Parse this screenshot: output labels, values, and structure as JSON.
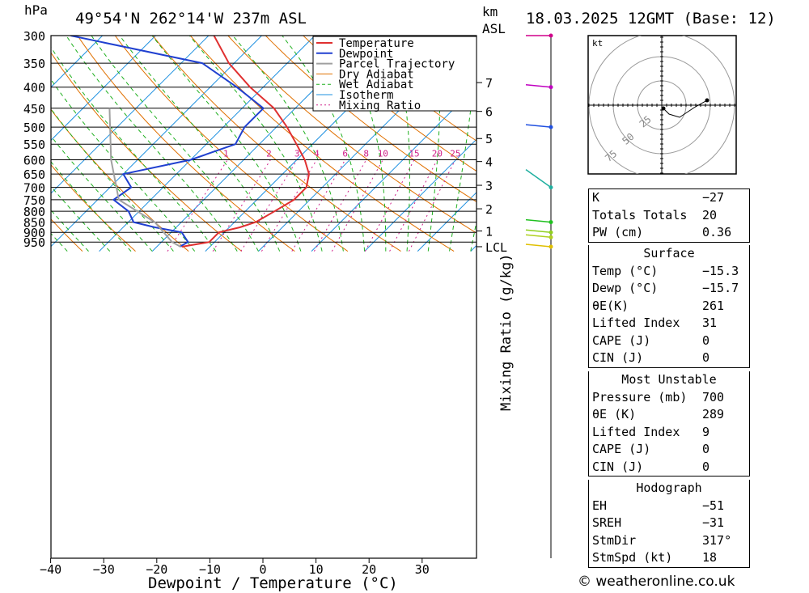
{
  "header": {
    "pressure_unit": "hPa",
    "location": "49°54'N  262°14'W  237m  ASL",
    "height_unit_1": "km",
    "height_unit_2": "ASL",
    "datetime": "18.03.2025  12GMT  (Base: 12)"
  },
  "chart_data": {
    "type": "line",
    "xlabel": "Dewpoint / Temperature (°C)",
    "x_ticks": [
      "−40",
      "−30",
      "−20",
      "−10",
      "0",
      "10",
      "20",
      "30"
    ],
    "x_tick_values": [
      -40,
      -30,
      -20,
      -10,
      0,
      10,
      20,
      30
    ],
    "ylabel_left": "hPa",
    "pressure_levels": [
      300,
      350,
      400,
      450,
      500,
      550,
      600,
      650,
      700,
      750,
      800,
      850,
      900,
      950
    ],
    "height_ticks": [
      {
        "label": "7",
        "p": 390
      },
      {
        "label": "6",
        "p": 458
      },
      {
        "label": "5",
        "p": 533
      },
      {
        "label": "4",
        "p": 606
      },
      {
        "label": "3",
        "p": 692
      },
      {
        "label": "2",
        "p": 789
      },
      {
        "label": "1",
        "p": 893
      },
      {
        "label": "LCL",
        "p": 975
      }
    ],
    "mixing_ratio_label": "Mixing Ratio (g/kg)",
    "mixing_ratio_values": [
      "1",
      "2",
      "3",
      "4",
      "6",
      "8",
      "10",
      "15",
      "20",
      "25"
    ],
    "legend": [
      "Temperature",
      "Dewpoint",
      "Parcel Trajectory",
      "Dry Adiabat",
      "Wet Adiabat",
      "Isotherm",
      "Mixing Ratio"
    ],
    "colors": {
      "temperature": "#e03030",
      "dewpoint": "#2040d0",
      "parcel": "#a0a0a0",
      "dry_adiabat": "#e07000",
      "wet_adiabat": "#20b020",
      "isotherm": "#1e90e0",
      "mixing_ratio": "#d0208a"
    },
    "series": [
      {
        "name": "Temperature",
        "points": [
          [
            300,
            -49
          ],
          [
            350,
            -41
          ],
          [
            400,
            -32.5
          ],
          [
            450,
            -24
          ],
          [
            500,
            -18
          ],
          [
            550,
            -13
          ],
          [
            600,
            -8.5
          ],
          [
            650,
            -5
          ],
          [
            700,
            -3
          ],
          [
            750,
            -3
          ],
          [
            800,
            -4.5
          ],
          [
            850,
            -6
          ],
          [
            875,
            -8
          ],
          [
            900,
            -11
          ],
          [
            950,
            -11
          ],
          [
            975,
            -15.3
          ]
        ]
      },
      {
        "name": "Dewpoint",
        "points": [
          [
            300,
            -76
          ],
          [
            350,
            -46
          ],
          [
            400,
            -35
          ],
          [
            450,
            -26
          ],
          [
            500,
            -26
          ],
          [
            550,
            -24.5
          ],
          [
            600,
            -30
          ],
          [
            650,
            -40
          ],
          [
            700,
            -36
          ],
          [
            750,
            -37
          ],
          [
            800,
            -32
          ],
          [
            850,
            -29
          ],
          [
            875,
            -24
          ],
          [
            900,
            -18
          ],
          [
            950,
            -15
          ],
          [
            975,
            -15.7
          ]
        ]
      },
      {
        "name": "Parcel Trajectory",
        "points": [
          [
            450,
            -55
          ],
          [
            600,
            -45
          ],
          [
            750,
            -36
          ],
          [
            850,
            -25
          ],
          [
            950,
            -18
          ],
          [
            975,
            -15.5
          ]
        ]
      }
    ],
    "hodograph_unit": "kt",
    "hodograph_rings": [
      "25",
      "50",
      "75"
    ]
  },
  "indices": [
    {
      "label": "K",
      "value": "−27"
    },
    {
      "label": "Totals Totals",
      "value": "20"
    },
    {
      "label": "PW (cm)",
      "value": "0.36"
    }
  ],
  "surface": {
    "title": "Surface",
    "rows": [
      {
        "label": "Temp (°C)",
        "value": "−15.3"
      },
      {
        "label": "Dewp (°C)",
        "value": "−15.7"
      },
      {
        "label": "θE(K)",
        "value": "261"
      },
      {
        "label": "Lifted Index",
        "value": "31"
      },
      {
        "label": "CAPE (J)",
        "value": "0"
      },
      {
        "label": "CIN (J)",
        "value": "0"
      }
    ]
  },
  "most_unstable": {
    "title": "Most Unstable",
    "rows": [
      {
        "label": "Pressure (mb)",
        "value": "700"
      },
      {
        "label": "θE (K)",
        "value": "289"
      },
      {
        "label": "Lifted Index",
        "value": "9"
      },
      {
        "label": "CAPE (J)",
        "value": "0"
      },
      {
        "label": "CIN (J)",
        "value": "0"
      }
    ]
  },
  "hodograph_table": {
    "title": "Hodograph",
    "rows": [
      {
        "label": "EH",
        "value": "−51"
      },
      {
        "label": "SREH",
        "value": "−31"
      },
      {
        "label": "StmDir",
        "value": "317°"
      },
      {
        "label": "StmSpd (kt)",
        "value": "18"
      }
    ]
  },
  "copyright": "© weatheronline.co.uk"
}
